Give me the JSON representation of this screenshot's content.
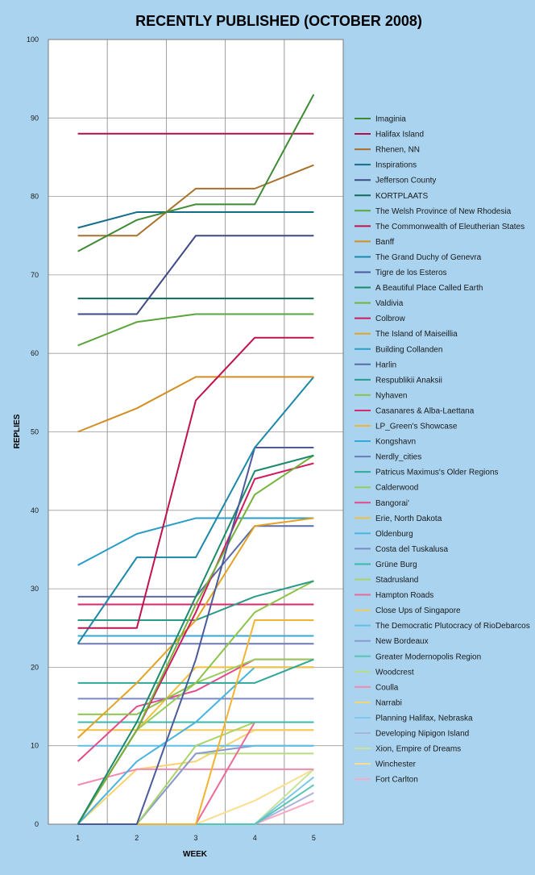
{
  "chart_data": {
    "type": "line",
    "title": "RECENTLY PUBLISHED (OCTOBER 2008)",
    "xlabel": "WEEK",
    "ylabel": "REPLIES",
    "x": [
      1,
      2,
      3,
      4,
      5
    ],
    "ylim": [
      0,
      100
    ],
    "yticks": [
      0,
      10,
      20,
      30,
      40,
      50,
      60,
      70,
      80,
      90,
      100
    ],
    "grid": true,
    "legend_position": "right",
    "series": [
      {
        "name": "Imaginia",
        "color": "#3e8a35",
        "values": [
          73,
          77,
          79,
          79,
          93
        ]
      },
      {
        "name": "Halifax Island",
        "color": "#b0104a",
        "values": [
          88,
          88,
          88,
          88,
          88
        ]
      },
      {
        "name": "Rhenen, NN",
        "color": "#a9712a",
        "values": [
          75,
          75,
          81,
          81,
          84
        ]
      },
      {
        "name": "Inspirations",
        "color": "#146e8a",
        "values": [
          76,
          78,
          78,
          78,
          78
        ]
      },
      {
        "name": "Jefferson County",
        "color": "#3e4a86",
        "values": [
          65,
          65,
          75,
          75,
          75
        ]
      },
      {
        "name": "KORTPLAATS",
        "color": "#0e6a5a",
        "values": [
          67,
          67,
          67,
          67,
          67
        ]
      },
      {
        "name": "The Welsh Province of New Rhodesia",
        "color": "#5aa53c",
        "values": [
          61,
          64,
          65,
          65,
          65
        ]
      },
      {
        "name": "The Commonwealth of Eleutherian States",
        "color": "#c0134e",
        "values": [
          25,
          25,
          54,
          62,
          62
        ]
      },
      {
        "name": "Banff",
        "color": "#d18f22",
        "values": [
          50,
          53,
          57,
          57,
          57
        ]
      },
      {
        "name": "The Grand Duchy of Genevra",
        "color": "#1a88a8",
        "values": [
          23,
          34,
          34,
          48,
          57
        ]
      },
      {
        "name": "Tigre de los Esteros",
        "color": "#4a5a9a",
        "values": [
          0,
          0,
          21,
          48,
          48
        ]
      },
      {
        "name": "A Beautiful Place Called Earth",
        "color": "#1a8a6a",
        "values": [
          0,
          13,
          29,
          45,
          47
        ]
      },
      {
        "name": "Valdivia",
        "color": "#74b23a",
        "values": [
          0,
          12,
          28,
          42,
          47
        ]
      },
      {
        "name": "Colbrow",
        "color": "#d01a5c",
        "values": [
          0,
          12,
          27,
          44,
          46
        ]
      },
      {
        "name": "The Island of Maiseillia",
        "color": "#e2a325",
        "values": [
          11,
          18,
          26,
          38,
          39
        ]
      },
      {
        "name": "Building Collanden",
        "color": "#2a9cc8",
        "values": [
          33,
          37,
          39,
          39,
          39
        ]
      },
      {
        "name": "Harlin",
        "color": "#5a6aa8",
        "values": [
          29,
          29,
          29,
          38,
          38
        ]
      },
      {
        "name": "Respublikii Anaksii",
        "color": "#2a9a8a",
        "values": [
          26,
          26,
          26,
          29,
          31
        ]
      },
      {
        "name": "Nyhaven",
        "color": "#8cc44a",
        "values": [
          14,
          14,
          18,
          27,
          31
        ]
      },
      {
        "name": "Casanares & Alba-Laettana",
        "color": "#d8286e",
        "values": [
          28,
          28,
          28,
          28,
          28
        ]
      },
      {
        "name": "LP_Green's Showcase",
        "color": "#f2b430",
        "values": [
          0,
          0,
          0,
          26,
          26
        ]
      },
      {
        "name": "Kongshavn",
        "color": "#36a8d8",
        "values": [
          24,
          24,
          24,
          24,
          24
        ]
      },
      {
        "name": "Nerdly_cities",
        "color": "#6a7ab8",
        "values": [
          23,
          23,
          23,
          23,
          23
        ]
      },
      {
        "name": "Patricus Maximus's Older Regions",
        "color": "#30a898",
        "values": [
          18,
          18,
          18,
          18,
          21
        ]
      },
      {
        "name": "Calderwood",
        "color": "#98cc5a",
        "values": [
          0,
          12,
          18,
          21,
          21
        ]
      },
      {
        "name": "Bangorai'",
        "color": "#e24a8a",
        "values": [
          8,
          15,
          17,
          21,
          21
        ]
      },
      {
        "name": "Erie, North Dakota",
        "color": "#f4c040",
        "values": [
          12,
          12,
          20,
          20,
          20
        ]
      },
      {
        "name": "Oldenburg",
        "color": "#48b4e0",
        "values": [
          0,
          8,
          13,
          20,
          20
        ]
      },
      {
        "name": "Costa del Tuskalusa",
        "color": "#7a8ac8",
        "values": [
          16,
          16,
          16,
          16,
          16
        ]
      },
      {
        "name": "Grüne Burg",
        "color": "#3ab8a8",
        "values": [
          13,
          13,
          13,
          13,
          13
        ]
      },
      {
        "name": "Stadrusland",
        "color": "#a8d468",
        "values": [
          0,
          0,
          10,
          13,
          13
        ]
      },
      {
        "name": "Hampton Roads",
        "color": "#ea6a9a",
        "values": [
          0,
          0,
          0,
          13,
          13
        ]
      },
      {
        "name": "Close Ups of Singapore",
        "color": "#f6ca58",
        "values": [
          0,
          12,
          12,
          12,
          12
        ]
      },
      {
        "name": "The Democratic Plutocracy of RioDebarcos",
        "color": "#60bee8",
        "values": [
          10,
          10,
          10,
          10,
          10
        ]
      },
      {
        "name": "New Bordeaux",
        "color": "#8a9ad0",
        "values": [
          0,
          0,
          9,
          10,
          10
        ]
      },
      {
        "name": "Greater Modernopolis Region",
        "color": "#58c4b4",
        "values": [
          0,
          0,
          0,
          0,
          5
        ]
      },
      {
        "name": "Woodcrest",
        "color": "#b8dc80",
        "values": [
          0,
          0,
          9,
          9,
          9
        ]
      },
      {
        "name": "Coulla",
        "color": "#f28ab0",
        "values": [
          5,
          7,
          7,
          7,
          7
        ]
      },
      {
        "name": "Narrabi",
        "color": "#f8d470",
        "values": [
          0,
          7,
          8,
          12,
          12
        ]
      },
      {
        "name": "Planning Halifax,  Nebraska",
        "color": "#7ec8ee",
        "values": [
          0,
          0,
          0,
          0,
          6
        ]
      },
      {
        "name": "Developing Nipigon Island",
        "color": "#a8b4dc",
        "values": [
          0,
          0,
          0,
          0,
          4
        ]
      },
      {
        "name": "Xion, Empire of Dreams",
        "color": "#c8e498",
        "values": [
          0,
          0,
          0,
          0,
          7
        ]
      },
      {
        "name": "Winchester",
        "color": "#fadf8e",
        "values": [
          0,
          0,
          0,
          3,
          7
        ]
      },
      {
        "name": "Fort Carlton",
        "color": "#f6aac6",
        "values": [
          0,
          0,
          0,
          0,
          3
        ]
      }
    ]
  }
}
